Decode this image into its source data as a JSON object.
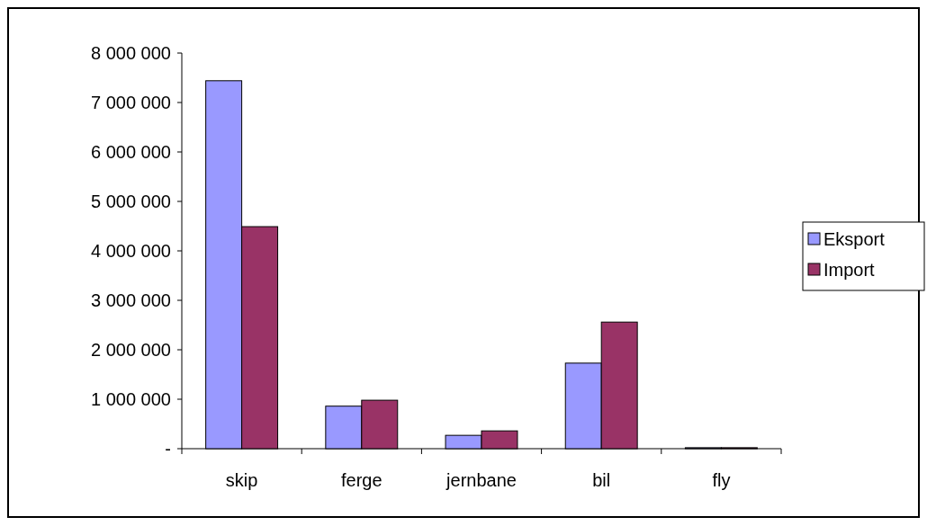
{
  "chart_data": {
    "type": "bar",
    "categories": [
      "skip",
      "ferge",
      "jernbane",
      "bil",
      "fly"
    ],
    "series": [
      {
        "name": "Eksport",
        "color": "#9999ff",
        "values": [
          7440000,
          860000,
          270000,
          1730000,
          20000
        ]
      },
      {
        "name": "Import",
        "color": "#993366",
        "values": [
          4490000,
          980000,
          360000,
          2560000,
          20000
        ]
      }
    ],
    "ylim": [
      0,
      8000000
    ],
    "yticks": [
      {
        "value": 0,
        "label": "-"
      },
      {
        "value": 1000000,
        "label": "1 000 000"
      },
      {
        "value": 2000000,
        "label": "2 000 000"
      },
      {
        "value": 3000000,
        "label": "3 000 000"
      },
      {
        "value": 4000000,
        "label": "4 000 000"
      },
      {
        "value": 5000000,
        "label": "5 000 000"
      },
      {
        "value": 6000000,
        "label": "6 000 000"
      },
      {
        "value": 7000000,
        "label": "7 000 000"
      },
      {
        "value": 8000000,
        "label": "8 000 000"
      }
    ],
    "grid": false,
    "legend": "right"
  }
}
